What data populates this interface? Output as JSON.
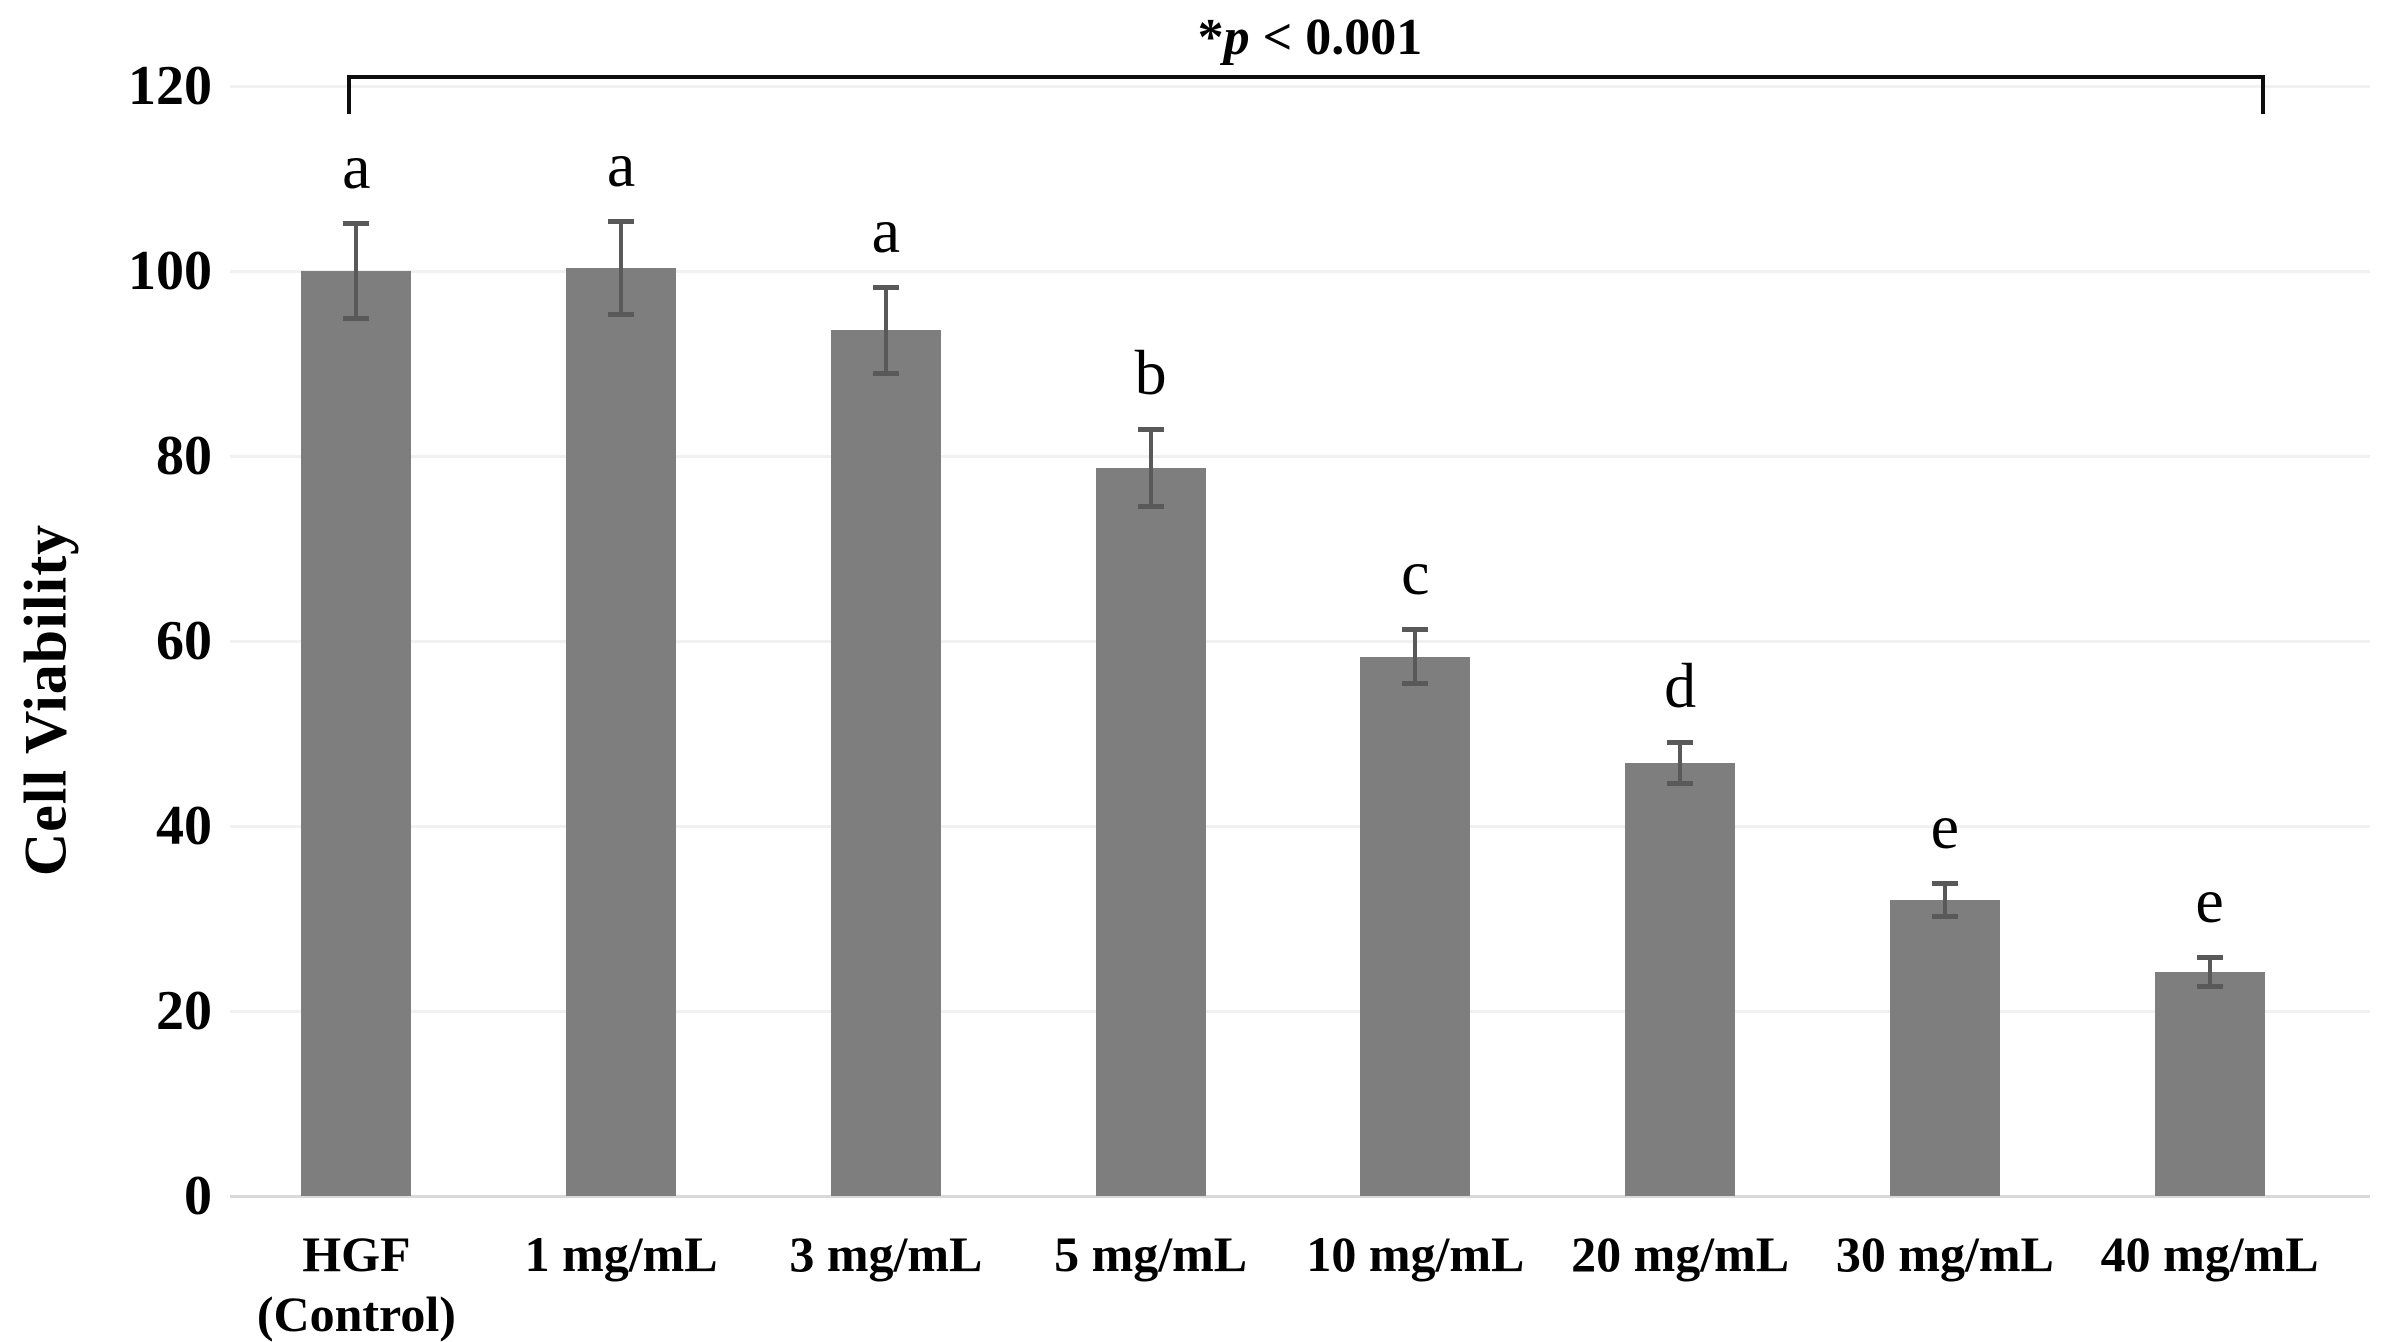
{
  "chart_data": {
    "type": "bar",
    "title": "",
    "xlabel": "",
    "ylabel": "Cell Viability",
    "categories": [
      "HGF\n(Control)",
      "1 mg/mL",
      "3 mg/mL",
      "5 mg/mL",
      "10 mg/mL",
      "20 mg/mL",
      "30 mg/mL",
      "40 mg/mL"
    ],
    "values": [
      100.0,
      100.3,
      93.6,
      78.7,
      58.3,
      46.8,
      32.0,
      24.2
    ],
    "error_bars": [
      5.2,
      5.1,
      4.7,
      4.2,
      3.0,
      2.3,
      1.8,
      1.6
    ],
    "significance_letters": [
      "a",
      "a",
      "a",
      "b",
      "c",
      "d",
      "e",
      "e"
    ],
    "significance_bracket_label": "*p < 0.001",
    "yticks": [
      0,
      20,
      40,
      60,
      80,
      100,
      120
    ],
    "ylim": [
      0,
      120
    ],
    "grid": true,
    "legend": "none",
    "bar_color": "#7e7e7e",
    "error_color": "#595959",
    "gridline_color": "#f1f1f1",
    "axis_line_color": "#d9d9d9",
    "text_color": "#000000"
  },
  "y_axis": {
    "label": "Cell Viability"
  },
  "significance": {
    "star": "*",
    "p": "p",
    "rest": " < 0.001"
  }
}
